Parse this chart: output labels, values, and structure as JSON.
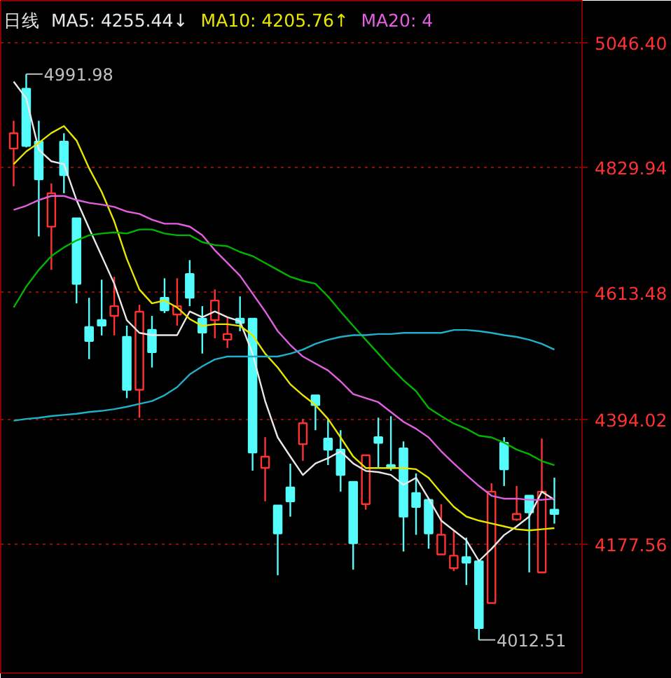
{
  "chart_data": {
    "type": "candlestick",
    "title": "日线",
    "categories": [
      null,
      null,
      null,
      null,
      null,
      null,
      null,
      null,
      null,
      null,
      null,
      null,
      null,
      null,
      null,
      null,
      null,
      null,
      null,
      null,
      null,
      null,
      null,
      null,
      null,
      null,
      null,
      null,
      null,
      null,
      null,
      null,
      null,
      null,
      null,
      null,
      null,
      null,
      null,
      null,
      null,
      null,
      null,
      null
    ],
    "ohlc": [
      [
        4863.0,
        4911.2,
        4797.8,
        4889.5
      ],
      [
        4966.7,
        4991.98,
        4865.0,
        4867.8
      ],
      [
        4875.0,
        4911.2,
        4710.9,
        4809.9
      ],
      [
        4727.8,
        4802.6,
        4653.0,
        4785.7
      ],
      [
        4875.0,
        4889.5,
        4785.7,
        4817.1
      ],
      [
        4742.3,
        4742.3,
        4595.1,
        4628.9
      ],
      [
        4554.1,
        4604.7,
        4498.5,
        4529.9
      ],
      [
        4566.1,
        4636.1,
        4539.6,
        4556.5
      ],
      [
        4573.3,
        4640.9,
        4539.6,
        4590.2
      ],
      [
        4537.1,
        4556.5,
        4431.0,
        4445.4
      ],
      [
        4445.4,
        4592.6,
        4397.2,
        4580.6
      ],
      [
        4549.2,
        4573.3,
        4484.0,
        4510.6
      ],
      [
        4604.7,
        4638.5,
        4578.2,
        4583.0
      ],
      [
        4575.8,
        4638.5,
        4556.5,
        4590.2
      ],
      [
        4645.8,
        4669.9,
        4590.2,
        4604.7
      ],
      [
        4568.5,
        4590.2,
        4508.2,
        4544.4
      ],
      [
        4566.1,
        4619.2,
        4534.7,
        4599.9
      ],
      [
        4532.3,
        4570.9,
        4517.8,
        4542.0
      ],
      [
        4568.5,
        4607.1,
        4546.8,
        4561.3
      ],
      [
        4568.5,
        4568.5,
        4305.5,
        4336.9
      ],
      [
        4310.3,
        4363.4,
        4252.4,
        4329.6
      ],
      [
        4245.1,
        4245.1,
        4124.4,
        4196.8
      ],
      [
        4276.5,
        4317.6,
        4225.8,
        4252.4
      ],
      [
        4351.3,
        4394.8,
        4322.4,
        4387.5
      ],
      [
        4435.8,
        4435.8,
        4375.5,
        4418.9
      ],
      [
        4361.0,
        4394.8,
        4315.1,
        4341.7
      ],
      [
        4341.7,
        4375.5,
        4269.2,
        4298.2
      ],
      [
        4286.1,
        4286.1,
        4134.1,
        4180.0
      ],
      [
        4247.5,
        4332.0,
        4237.9,
        4332.0
      ],
      [
        4363.4,
        4397.2,
        4310.3,
        4353.7
      ],
      [
        4315.1,
        4399.6,
        4305.5,
        4310.3
      ],
      [
        4344.1,
        4356.1,
        4165.5,
        4225.8
      ],
      [
        4266.8,
        4300.6,
        4194.4,
        4242.7
      ],
      [
        4254.8,
        4254.8,
        4170.3,
        4196.8
      ],
      [
        4160.6,
        4247.5,
        4160.6,
        4194.4
      ],
      [
        4136.5,
        4201.7,
        4131.7,
        4158.2
      ],
      [
        4155.8,
        4189.6,
        4107.5,
        4146.2
      ],
      [
        4148.6,
        4148.6,
        4012.51,
        4032.7
      ],
      [
        4076.2,
        4283.7,
        4076.2,
        4269.2
      ],
      [
        4353.7,
        4363.4,
        4278.9,
        4307.9
      ],
      [
        4221.0,
        4278.9,
        4218.6,
        4230.6
      ],
      [
        4262.0,
        4262.0,
        4129.3,
        4233.1
      ],
      [
        4129.3,
        4361.0,
        4129.3,
        4269.2
      ],
      [
        4237.9,
        4293.4,
        4213.7,
        4230.6
      ]
    ],
    "colors": [
      "#ff3232",
      "#54fcfc",
      "#54fcfc",
      "#ff3232",
      "#54fcfc",
      "#54fcfc",
      "#54fcfc",
      "#54fcfc",
      "#ff3232",
      "#54fcfc",
      "#ff3232",
      "#54fcfc",
      "#54fcfc",
      "#ff3232",
      "#54fcfc",
      "#54fcfc",
      "#ff3232",
      "#ff3232",
      "#54fcfc",
      "#54fcfc",
      "#ff3232",
      "#54fcfc",
      "#54fcfc",
      "#ff3232",
      "#54fcfc",
      "#54fcfc",
      "#54fcfc",
      "#54fcfc",
      "#ff3232",
      "#54fcfc",
      "#54fcfc",
      "#54fcfc",
      "#54fcfc",
      "#54fcfc",
      "#ff3232",
      "#ff3232",
      "#54fcfc",
      "#54fcfc",
      "#ff3232",
      "#54fcfc",
      "#ff3232",
      "#54fcfc",
      "#ff3232",
      "#54fcfc"
    ],
    "series": [
      {
        "type": "line",
        "name": "MA5: 4255.44↓",
        "color": "#e8e8e8",
        "values": [
          4979,
          4950,
          4861,
          4841,
          4836,
          4774,
          4725,
          4677,
          4629,
          4566,
          4544,
          4540,
          4540,
          4540,
          4581,
          4571,
          4581,
          4571,
          4564,
          4508,
          4426,
          4363,
          4330,
          4298,
          4318,
          4327,
          4339,
          4318,
          4305,
          4303,
          4298,
          4281,
          4293,
          4257,
          4219,
          4202,
          4185,
          4149,
          4170,
          4194,
          4209,
          4226,
          4269,
          4255
        ]
      },
      {
        "type": "line",
        "name": "MA10: 4205.76↑",
        "color": "#e6e600",
        "values": [
          4836,
          4858,
          4873,
          4890,
          4902,
          4877,
          4829,
          4788,
          4737,
          4672,
          4619,
          4595,
          4600,
          4588,
          4568,
          4556,
          4559,
          4559,
          4556,
          4540,
          4508,
          4484,
          4455,
          4436,
          4419,
          4395,
          4363,
          4330,
          4310,
          4310,
          4310,
          4310,
          4308,
          4293,
          4267,
          4243,
          4226,
          4219,
          4214,
          4209,
          4204,
          4202,
          4204,
          4206
        ]
      },
      {
        "type": "line",
        "name": "MA20: 4",
        "color": "#e060e0",
        "values": [
          4757,
          4764,
          4774,
          4781,
          4781,
          4774,
          4769,
          4766,
          4762,
          4754,
          4750,
          4740,
          4733,
          4733,
          4728,
          4713,
          4687,
          4665,
          4643,
          4612,
          4581,
          4547,
          4523,
          4503,
          4491,
          4479,
          4460,
          4438,
          4431,
          4424,
          4407,
          4390,
          4378,
          4363,
          4339,
          4318,
          4298,
          4279,
          4262,
          4257,
          4257,
          4255,
          4255,
          4257
        ]
      },
      {
        "type": "line",
        "color": "#00b400",
        "values": [
          4588,
          4624,
          4653,
          4677,
          4692,
          4704,
          4713,
          4716,
          4718,
          4716,
          4723,
          4723,
          4716,
          4713,
          4713,
          4701,
          4696,
          4694,
          4684,
          4677,
          4665,
          4653,
          4641,
          4634,
          4629,
          4607,
          4581,
          4556,
          4532,
          4508,
          4484,
          4462,
          4443,
          4414,
          4400,
          4387,
          4378,
          4366,
          4363,
          4354,
          4342,
          4334,
          4322,
          4315
        ]
      },
      {
        "type": "line",
        "color": "#20b0c8",
        "values": [
          4392,
          4395,
          4397,
          4400,
          4402,
          4404,
          4407,
          4409,
          4412,
          4416,
          4421,
          4426,
          4436,
          4450,
          4472,
          4486,
          4498,
          4503,
          4503,
          4503,
          4503,
          4503,
          4508,
          4515,
          4525,
          4532,
          4537,
          4540,
          4540,
          4542,
          4542,
          4544,
          4544,
          4544,
          4544,
          4549,
          4549,
          4547,
          4544,
          4540,
          4537,
          4532,
          4525,
          4515
        ]
      }
    ],
    "annotations": [
      "4991.98",
      "4012.51"
    ],
    "ylim": [
      3955,
      5119
    ],
    "yticks": [
      {
        "value": 5046.4,
        "label": "5046.40"
      },
      4829.94,
      4613.48,
      4394.02,
      4177.56
    ],
    "grid": "y",
    "tick_labels": "y"
  }
}
